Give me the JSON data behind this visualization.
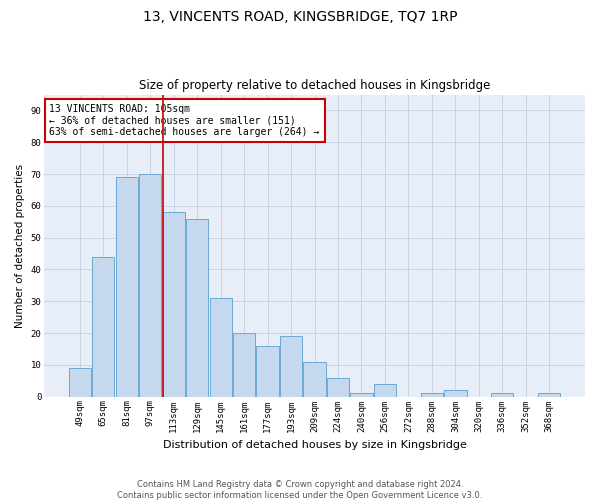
{
  "title": "13, VINCENTS ROAD, KINGSBRIDGE, TQ7 1RP",
  "subtitle": "Size of property relative to detached houses in Kingsbridge",
  "xlabel": "Distribution of detached houses by size in Kingsbridge",
  "ylabel": "Number of detached properties",
  "bar_labels": [
    "49sqm",
    "65sqm",
    "81sqm",
    "97sqm",
    "113sqm",
    "129sqm",
    "145sqm",
    "161sqm",
    "177sqm",
    "193sqm",
    "209sqm",
    "224sqm",
    "240sqm",
    "256sqm",
    "272sqm",
    "288sqm",
    "304sqm",
    "320sqm",
    "336sqm",
    "352sqm",
    "368sqm"
  ],
  "bar_values": [
    9,
    44,
    69,
    70,
    58,
    56,
    31,
    20,
    16,
    19,
    11,
    6,
    1,
    4,
    0,
    1,
    2,
    0,
    1,
    0,
    1
  ],
  "bar_color": "#c5d8ed",
  "bar_edge_color": "#6aaad4",
  "vline_color": "#cc0000",
  "vline_x_index": 3.525,
  "annotation_text": "13 VINCENTS ROAD: 105sqm\n← 36% of detached houses are smaller (151)\n63% of semi-detached houses are larger (264) →",
  "annotation_box_color": "#ffffff",
  "annotation_box_edge": "#cc0000",
  "ylim": [
    0,
    95
  ],
  "yticks": [
    0,
    10,
    20,
    30,
    40,
    50,
    60,
    70,
    80,
    90
  ],
  "grid_color": "#c8d4e4",
  "bg_color": "#e8eef8",
  "footer": "Contains HM Land Registry data © Crown copyright and database right 2024.\nContains public sector information licensed under the Open Government Licence v3.0.",
  "title_fontsize": 10,
  "subtitle_fontsize": 8.5,
  "xlabel_fontsize": 8,
  "ylabel_fontsize": 7.5,
  "tick_fontsize": 6.5,
  "annotation_fontsize": 7,
  "footer_fontsize": 6
}
